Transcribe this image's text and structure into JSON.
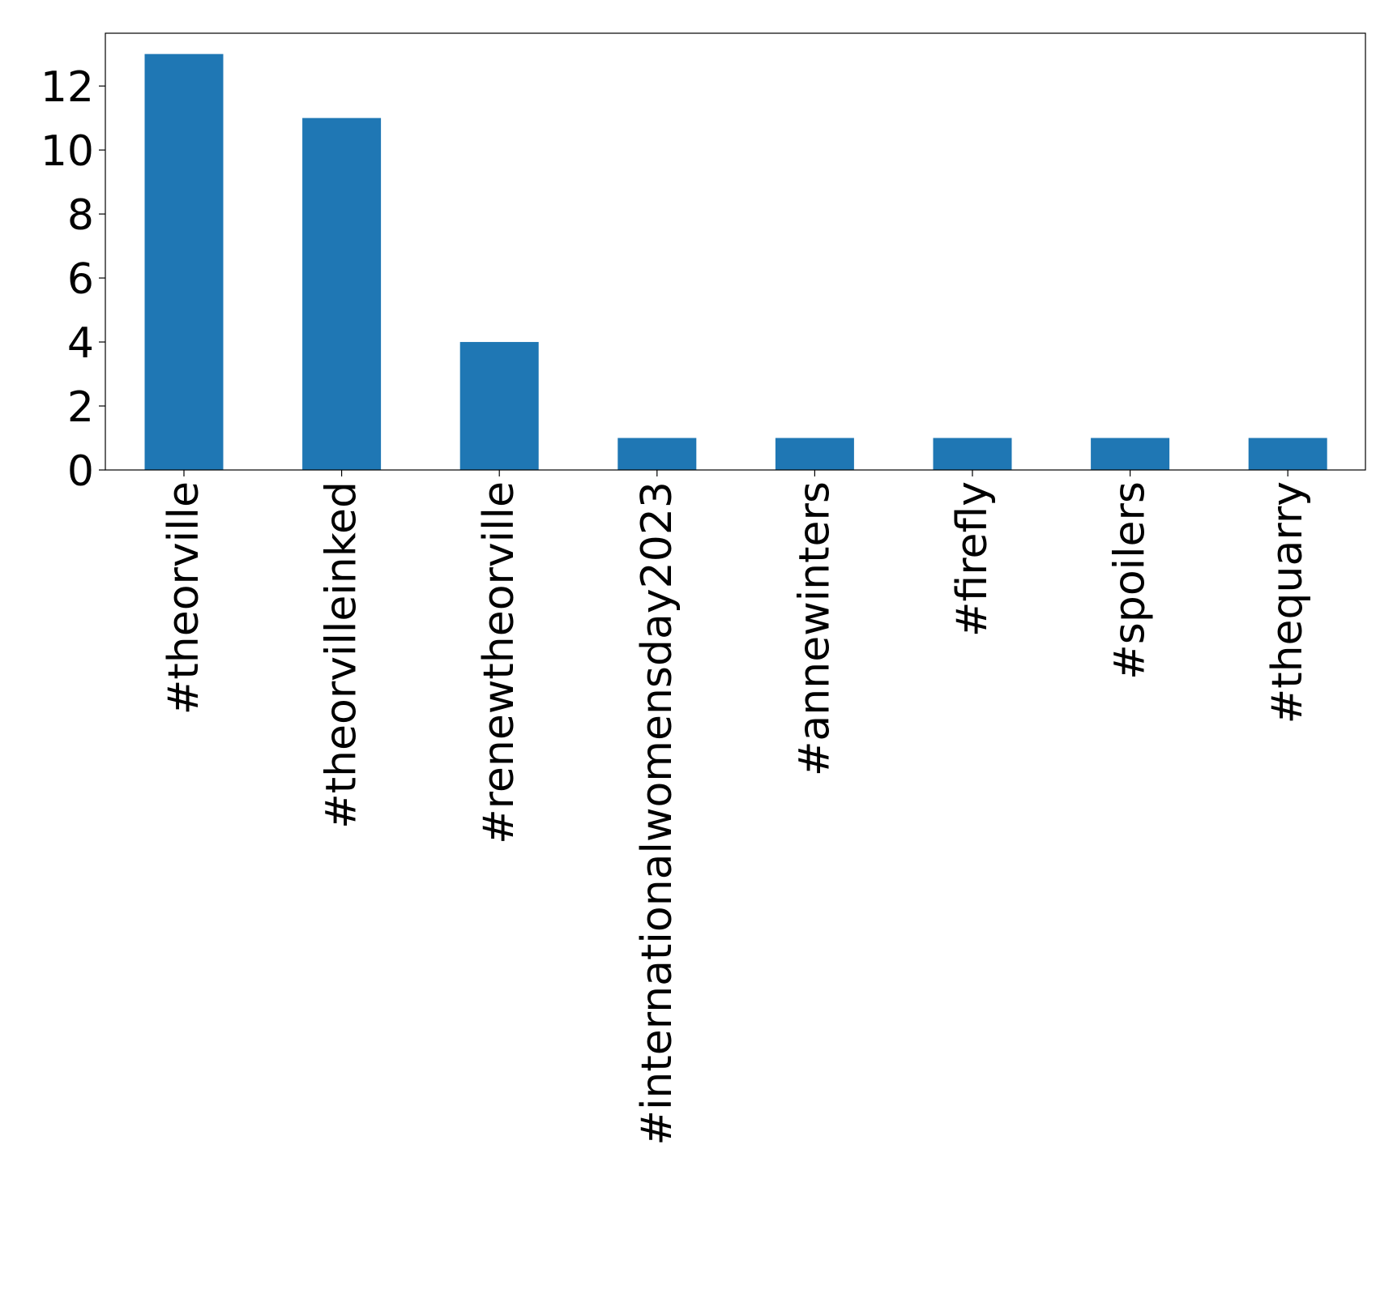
{
  "chart_data": {
    "type": "bar",
    "categories": [
      "#theorville",
      "#theorvilleinked",
      "#renewtheorville",
      "#internationalwomensday2023",
      "#annewinters",
      "#firefly",
      "#spoilers",
      "#thequarry"
    ],
    "values": [
      13,
      11,
      4,
      1,
      1,
      1,
      1,
      1
    ],
    "yticks": [
      "0",
      "2",
      "4",
      "6",
      "8",
      "10",
      "12"
    ],
    "ylim": [
      0,
      13.65
    ],
    "grid": false,
    "legend": "none",
    "colors": {
      "bar": "#1f77b4"
    }
  }
}
